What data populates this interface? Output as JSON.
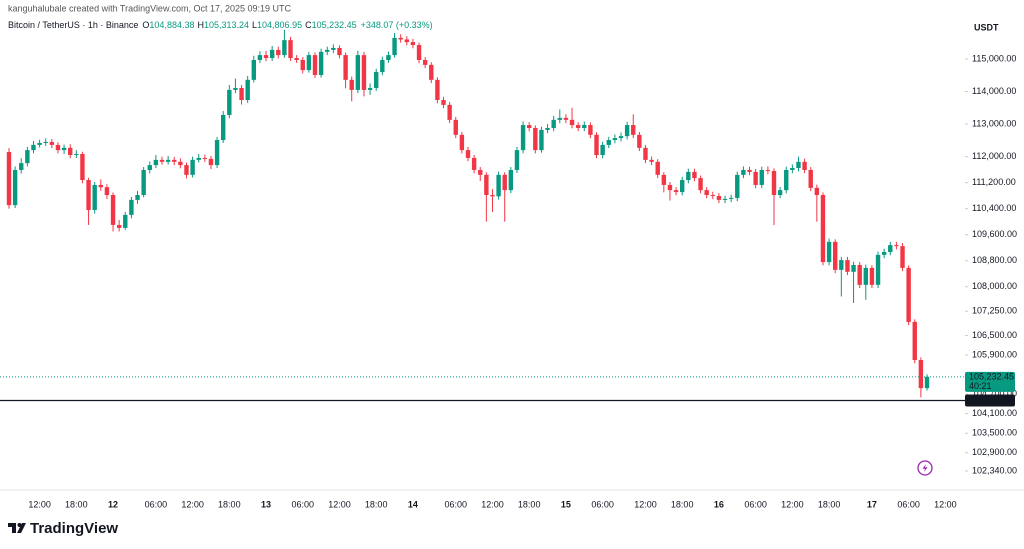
{
  "header": {
    "attribution": "kanguhalubale created with TradingView.com, Oct 17, 2025 09:19 UTC"
  },
  "chart_data": {
    "type": "candlestick",
    "symbol": "Bitcoin / TetherUS · 1h · Binance",
    "ohlc_legend": {
      "o_label": "O",
      "o": "104,884.38",
      "h_label": "H",
      "h": "105,313.24",
      "l_label": "L",
      "l": "104,806.95",
      "c_label": "C",
      "c": "105,232.45",
      "change": "+348.07 (+0.33%)"
    },
    "y_unit": "USDT",
    "categories": [
      null,
      null,
      null,
      null,
      null,
      "12:00",
      null,
      null,
      null,
      null,
      null,
      "18:00",
      null,
      null,
      null,
      null,
      null,
      "12",
      null,
      null,
      null,
      null,
      null,
      null,
      "06:00",
      null,
      null,
      null,
      null,
      null,
      "12:00",
      null,
      null,
      null,
      null,
      null,
      "18:00",
      null,
      null,
      null,
      null,
      null,
      "13",
      null,
      null,
      null,
      null,
      null,
      "06:00",
      null,
      null,
      null,
      null,
      null,
      "12:00",
      null,
      null,
      null,
      null,
      null,
      "18:00",
      null,
      null,
      null,
      null,
      null,
      "14",
      null,
      null,
      null,
      null,
      null,
      null,
      "06:00",
      null,
      null,
      null,
      null,
      null,
      "12:00",
      null,
      null,
      null,
      null,
      null,
      "18:00",
      null,
      null,
      null,
      null,
      null,
      "15",
      null,
      null,
      null,
      null,
      null,
      "06:00",
      null,
      null,
      null,
      null,
      null,
      null,
      "12:00",
      null,
      null,
      null,
      null,
      null,
      "18:00",
      null,
      null,
      null,
      null,
      null,
      "16",
      null,
      null,
      null,
      null,
      null,
      "06:00",
      null,
      null,
      null,
      null,
      null,
      "12:00",
      null,
      null,
      null,
      null,
      null,
      "18:00",
      null,
      null,
      null,
      null,
      null,
      null,
      "17",
      null,
      null,
      null,
      null,
      null,
      "06:00",
      null,
      null,
      null,
      null,
      null,
      "12:00",
      null,
      null,
      null
    ],
    "open": [
      112140,
      110510,
      111590,
      111800,
      112200,
      112360,
      112420,
      112450,
      112360,
      112200,
      112270,
      112050,
      112080,
      111280,
      110360,
      111130,
      111060,
      110820,
      109900,
      109810,
      110210,
      110670,
      110820,
      111590,
      111740,
      111900,
      111840,
      111900,
      111840,
      111740,
      111440,
      111900,
      111960,
      111930,
      111740,
      112510,
      113280,
      114050,
      114110,
      113740,
      114360,
      114970,
      115120,
      115030,
      115280,
      115120,
      115580,
      115030,
      114970,
      114660,
      115120,
      114510,
      115220,
      115280,
      115340,
      115120,
      114360,
      114050,
      115120,
      114050,
      114110,
      114600,
      114970,
      115120,
      115650,
      115600,
      115520,
      115430,
      114970,
      114820,
      114360,
      113740,
      113590,
      113130,
      112670,
      112200,
      111960,
      111590,
      111440,
      110820,
      110780,
      111440,
      110970,
      111590,
      112200,
      112970,
      112880,
      112200,
      112820,
      112880,
      113130,
      113190,
      113130,
      112970,
      112880,
      112970,
      112670,
      112050,
      112360,
      112510,
      112570,
      112630,
      112970,
      112670,
      112270,
      111900,
      111840,
      111440,
      111130,
      110970,
      110910,
      111280,
      111530,
      111340,
      110970,
      110820,
      110790,
      110670,
      110700,
      110730,
      111440,
      111590,
      111530,
      111130,
      111590,
      111560,
      110820,
      110970,
      111590,
      111650,
      111840,
      111590,
      111040,
      110820,
      108760,
      109380,
      108520,
      108820,
      108460,
      108670,
      108060,
      108580,
      108060,
      108980,
      109070,
      109280,
      109250,
      108580,
      106920,
      105750,
      104884.38,
      null,
      null,
      null,
      null,
      null,
      null
    ],
    "high": [
      112260,
      111700,
      111950,
      112300,
      112480,
      112520,
      112560,
      112540,
      112440,
      112370,
      112380,
      112200,
      112150,
      111350,
      111220,
      111300,
      111150,
      110900,
      110050,
      110300,
      110760,
      110950,
      111680,
      111850,
      112050,
      112000,
      112020,
      111990,
      111950,
      111820,
      112000,
      112080,
      112060,
      112020,
      112600,
      113400,
      114200,
      114400,
      114200,
      114480,
      115100,
      115240,
      115250,
      115400,
      115380,
      115900,
      115680,
      115120,
      115060,
      115220,
      115200,
      115320,
      115380,
      115450,
      115420,
      115200,
      114460,
      115250,
      115220,
      114250,
      114700,
      115070,
      115230,
      115800,
      115760,
      115700,
      115620,
      115510,
      115060,
      114900,
      114440,
      113840,
      113680,
      113220,
      112760,
      112300,
      112050,
      111680,
      111520,
      111000,
      111540,
      111520,
      111680,
      112300,
      113080,
      113060,
      112960,
      112920,
      113000,
      113250,
      113450,
      113300,
      113500,
      113060,
      113080,
      113050,
      112750,
      112460,
      112610,
      112680,
      112740,
      113070,
      113300,
      112760,
      112360,
      112000,
      111920,
      111520,
      111220,
      111060,
      111380,
      111630,
      111630,
      111420,
      111060,
      110920,
      110880,
      110800,
      110830,
      111540,
      111700,
      111690,
      111620,
      111690,
      111700,
      111640,
      111070,
      111690,
      111760,
      112000,
      111940,
      111680,
      111140,
      110900,
      109480,
      109460,
      108920,
      108920,
      108770,
      108760,
      108680,
      108660,
      109080,
      109170,
      109380,
      109380,
      109340,
      108660,
      107000,
      105830,
      105313.24,
      null,
      null,
      null,
      null,
      null,
      null
    ],
    "low": [
      110400,
      110420,
      111480,
      111700,
      112100,
      112280,
      112330,
      112260,
      112100,
      112080,
      111950,
      111960,
      111180,
      109900,
      110250,
      110950,
      110700,
      109700,
      109700,
      109750,
      110100,
      110550,
      110750,
      111480,
      111650,
      111750,
      111760,
      111740,
      111640,
      111330,
      111360,
      111820,
      111840,
      111620,
      111650,
      112420,
      113180,
      113950,
      113600,
      113650,
      114280,
      114880,
      114930,
      114940,
      115020,
      115040,
      114940,
      114880,
      114560,
      114580,
      114420,
      114430,
      115120,
      115180,
      115020,
      114100,
      113700,
      113950,
      113850,
      113900,
      114020,
      114500,
      114880,
      115040,
      115500,
      115420,
      115330,
      114870,
      114720,
      114260,
      113640,
      113490,
      113030,
      112570,
      112100,
      111860,
      111490,
      111250,
      110000,
      110300,
      110680,
      110000,
      110880,
      111500,
      112100,
      112780,
      112100,
      112120,
      112720,
      112780,
      113030,
      113030,
      112870,
      112780,
      112780,
      112570,
      111950,
      111950,
      112260,
      112410,
      112470,
      112530,
      112570,
      112170,
      111800,
      111740,
      111340,
      110900,
      110650,
      110810,
      110810,
      111180,
      111240,
      110870,
      110720,
      110690,
      110570,
      110570,
      110600,
      110630,
      111340,
      111430,
      111030,
      111030,
      111460,
      109900,
      110720,
      110870,
      111490,
      111550,
      111490,
      110940,
      110000,
      108660,
      108660,
      108420,
      107700,
      108360,
      107500,
      107960,
      107600,
      107960,
      107960,
      108880,
      108970,
      109150,
      108480,
      106820,
      105650,
      104600,
      104806.95,
      null,
      null,
      null,
      null,
      null,
      null
    ],
    "close": [
      110510,
      111590,
      111800,
      112200,
      112360,
      112420,
      112450,
      112360,
      112200,
      112270,
      112050,
      112080,
      111280,
      110360,
      111130,
      111060,
      110820,
      109900,
      109810,
      110210,
      110670,
      110820,
      111590,
      111740,
      111900,
      111840,
      111900,
      111840,
      111740,
      111440,
      111900,
      111960,
      111930,
      111740,
      112510,
      113280,
      114050,
      114110,
      113740,
      114360,
      114970,
      115120,
      115030,
      115280,
      115120,
      115580,
      115030,
      114970,
      114660,
      115120,
      114510,
      115220,
      115280,
      115340,
      115120,
      114360,
      114050,
      115120,
      114050,
      114110,
      114600,
      114970,
      115120,
      115650,
      115600,
      115520,
      115430,
      114970,
      114820,
      114360,
      113740,
      113590,
      113130,
      112670,
      112200,
      111960,
      111590,
      111440,
      110820,
      110780,
      111440,
      110970,
      111590,
      112200,
      112970,
      112880,
      112200,
      112820,
      112880,
      113130,
      113190,
      113130,
      112970,
      112880,
      112970,
      112670,
      112050,
      112360,
      112510,
      112570,
      112630,
      112970,
      112670,
      112270,
      111900,
      111840,
      111440,
      111130,
      110970,
      110910,
      111280,
      111530,
      111340,
      110970,
      110820,
      110790,
      110670,
      110700,
      110730,
      111440,
      111590,
      111530,
      111130,
      111590,
      111560,
      110820,
      110970,
      111590,
      111650,
      111840,
      111590,
      111040,
      110820,
      108760,
      109380,
      108520,
      108820,
      108460,
      108670,
      108060,
      108580,
      108060,
      108980,
      109070,
      109280,
      109250,
      108580,
      106920,
      105750,
      104884.38,
      105232.45,
      null,
      null,
      null,
      null,
      null,
      null
    ],
    "up_color": "#089981",
    "down_color": "#f23645",
    "ylim": [
      102000,
      116660
    ],
    "yticks": [
      {
        "value": 115000,
        "label": "115,000.00"
      },
      {
        "value": 114000,
        "label": "114,000.00"
      },
      {
        "value": 113000,
        "label": "113,000.00"
      },
      {
        "value": 112000,
        "label": "112,000.00"
      },
      {
        "value": 111200,
        "label": "111,200.00"
      },
      {
        "value": 110400,
        "label": "110,400.00"
      },
      {
        "value": 109600,
        "label": "109,600.00"
      },
      {
        "value": 108800,
        "label": "108,800.00"
      },
      {
        "value": 108000,
        "label": "108,000.00"
      },
      {
        "value": 107250,
        "label": "107,250.00"
      },
      {
        "value": 106500,
        "label": "106,500.00"
      },
      {
        "value": 105900,
        "label": "105,900.00"
      },
      {
        "value": 104700,
        "label": "104,700.00"
      },
      {
        "value": 104100,
        "label": "104,100.00"
      },
      {
        "value": 103500,
        "label": "103,500.00"
      },
      {
        "value": 102900,
        "label": "102,900.00"
      },
      {
        "value": 102340,
        "label": "102,340.00"
      }
    ],
    "grid": false,
    "last_price": {
      "label": "105,232.45",
      "countdown": "40:21"
    },
    "price_line": {
      "value": 104505,
      "label": "104,505.00"
    }
  },
  "footer": {
    "brand": "TradingView"
  }
}
